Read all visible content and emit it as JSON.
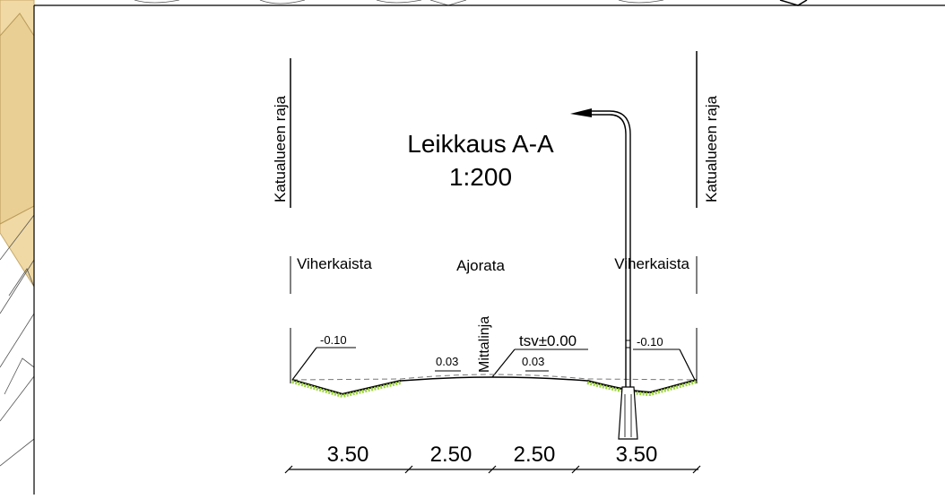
{
  "drawing": {
    "title": "Leikkaus A-A",
    "scale": "1:200",
    "boundary_left": "Katualueen raja",
    "boundary_right": "Katualueen raja",
    "zone_left": "Viherkaista",
    "zone_center": "Ajorata",
    "zone_right": "Viherkaista",
    "survey_line": "Mittalinja",
    "elevation": "tsv±0.00",
    "slope_left_verge": "-0.10",
    "slope_right_verge": "-0.10",
    "slope_left_lane": "0.03",
    "slope_right_lane": "0.03",
    "dimensions": [
      "3.50",
      "2.50",
      "2.50",
      "3.50"
    ]
  },
  "colors": {
    "map_fill": "#f0d9a4",
    "grass": "#9bd43a",
    "line": "#000000"
  }
}
